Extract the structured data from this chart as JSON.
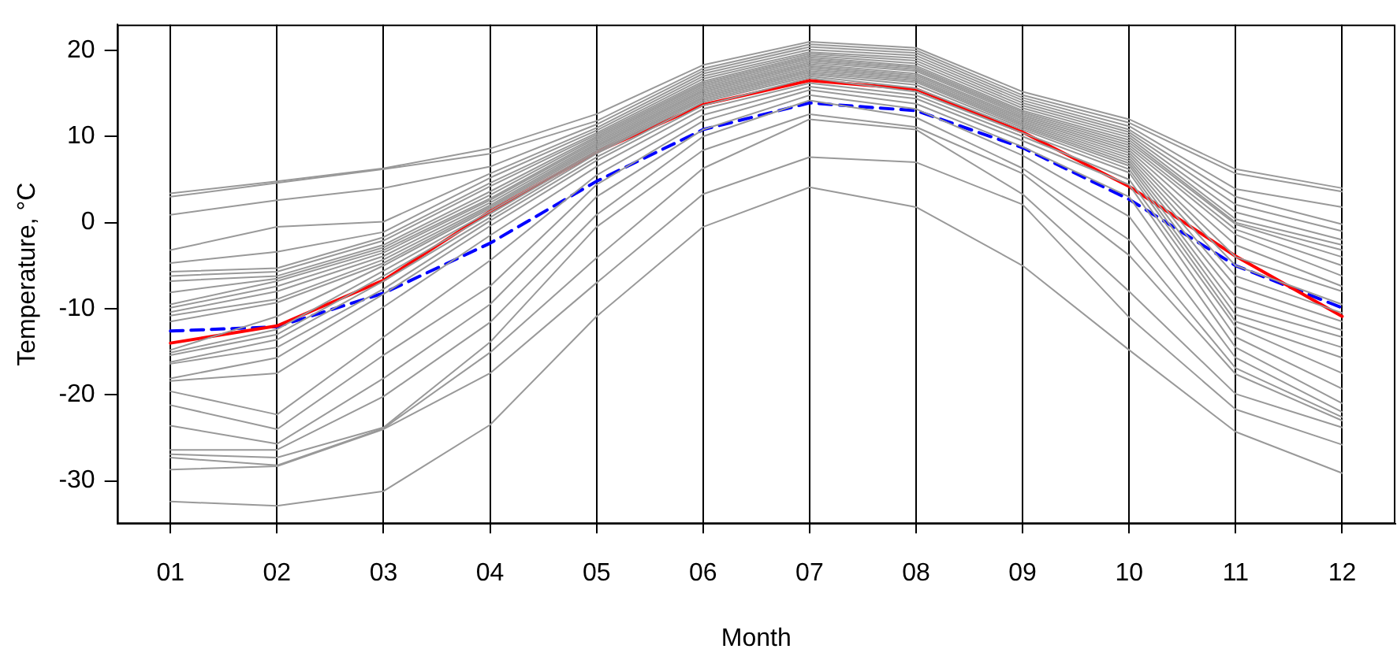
{
  "chart_data": {
    "type": "line",
    "xlabel": "Month",
    "ylabel": "Temperature, °C",
    "categories": [
      "01",
      "02",
      "03",
      "04",
      "05",
      "06",
      "07",
      "08",
      "09",
      "10",
      "11",
      "12"
    ],
    "ylim": [
      -35,
      23
    ],
    "yticks": [
      -30,
      -20,
      -10,
      0,
      10,
      20
    ],
    "grid": "x",
    "legend": false,
    "marker": "none",
    "series": [
      {
        "color": "#999999",
        "values": [
          3.4,
          4.8,
          6.3,
          8.6,
          12.6,
          18.3,
          21.0,
          20.3,
          15.2,
          12.0,
          6.2,
          4.0
        ]
      },
      {
        "color": "#999999",
        "values": [
          3.0,
          4.6,
          6.2,
          8.0,
          11.8,
          17.9,
          20.7,
          20.0,
          14.8,
          11.6,
          5.7,
          3.6
        ]
      },
      {
        "color": "#999999",
        "values": [
          0.9,
          2.6,
          4.0,
          6.5,
          11.4,
          17.6,
          20.4,
          19.7,
          14.5,
          11.2,
          3.9,
          1.8
        ]
      },
      {
        "color": "#999999",
        "values": [
          -3.2,
          -0.5,
          0.1,
          5.7,
          11.0,
          17.3,
          20.1,
          19.4,
          14.2,
          10.8,
          3.0,
          -0.2
        ]
      },
      {
        "color": "#999999",
        "values": [
          -4.7,
          -3.4,
          -1.1,
          5.2,
          10.7,
          17.0,
          19.8,
          19.1,
          13.9,
          10.5,
          2.1,
          -1.0
        ]
      },
      {
        "color": "#999999",
        "values": [
          -5.7,
          -5.3,
          -1.7,
          4.6,
          10.4,
          16.7,
          19.6,
          18.8,
          13.6,
          10.2,
          1.2,
          -2.0
        ]
      },
      {
        "color": "#999999",
        "values": [
          -6.2,
          -5.7,
          -2.1,
          4.2,
          10.2,
          16.4,
          19.4,
          18.5,
          13.3,
          9.9,
          0.4,
          -2.6
        ]
      },
      {
        "color": "#999999",
        "values": [
          -6.8,
          -6.2,
          -2.6,
          3.6,
          10.0,
          16.2,
          19.2,
          18.2,
          13.0,
          9.6,
          0.0,
          -3.2
        ]
      },
      {
        "color": "#999999",
        "values": [
          -8.1,
          -6.5,
          -2.9,
          3.2,
          9.8,
          16.0,
          19.0,
          18.0,
          12.8,
          9.3,
          -0.2,
          -4.0
        ]
      },
      {
        "color": "#999999",
        "values": [
          -9.5,
          -6.8,
          -3.2,
          2.8,
          9.6,
          15.8,
          18.8,
          17.8,
          12.6,
          9.0,
          -0.8,
          -5.0
        ]
      },
      {
        "color": "#999999",
        "values": [
          -9.9,
          -7.4,
          -3.5,
          2.6,
          9.4,
          15.6,
          18.6,
          17.6,
          12.4,
          8.7,
          -1.4,
          -6.2
        ]
      },
      {
        "color": "#999999",
        "values": [
          -10.4,
          -8.0,
          -3.9,
          2.3,
          9.2,
          15.4,
          18.4,
          17.3,
          12.2,
          8.4,
          -2.6,
          -7.4
        ]
      },
      {
        "color": "#999999",
        "values": [
          -10.8,
          -8.9,
          -4.3,
          2.0,
          9.0,
          15.2,
          18.2,
          17.1,
          12.0,
          8.1,
          -4.0,
          -8.0
        ]
      },
      {
        "color": "#999999",
        "values": [
          -11.5,
          -9.3,
          -4.7,
          1.8,
          8.8,
          15.0,
          18.0,
          16.9,
          11.8,
          7.8,
          -5.0,
          -9.5
        ]
      },
      {
        "color": "#999999",
        "values": [
          -14.8,
          -10.9,
          -5.0,
          1.6,
          8.6,
          14.8,
          17.8,
          16.7,
          11.6,
          7.5,
          -6.2,
          -10.5
        ]
      },
      {
        "color": "#999999",
        "values": [
          -15.1,
          -12.4,
          -5.6,
          1.3,
          8.4,
          14.6,
          17.6,
          16.5,
          11.4,
          7.2,
          -7.4,
          -11.5
        ]
      },
      {
        "color": "#999999",
        "values": [
          -15.4,
          -13.0,
          -6.2,
          1.0,
          8.2,
          14.4,
          17.4,
          16.3,
          11.2,
          6.9,
          -8.6,
          -12.5
        ]
      },
      {
        "color": "#999999",
        "values": [
          -16.2,
          -13.6,
          -6.8,
          0.6,
          8.0,
          14.2,
          17.2,
          16.0,
          11.0,
          6.6,
          -9.8,
          -13.3
        ]
      },
      {
        "color": "#999999",
        "values": [
          -16.4,
          -14.5,
          -7.7,
          0.2,
          7.6,
          14.0,
          17.0,
          15.6,
          10.8,
          6.2,
          -10.7,
          -14.5
        ]
      },
      {
        "color": "#999999",
        "values": [
          -18.1,
          -15.7,
          -8.3,
          -0.4,
          7.2,
          13.6,
          16.8,
          15.2,
          10.4,
          5.8,
          -11.5,
          -15.7
        ]
      },
      {
        "color": "#999999",
        "values": [
          -18.4,
          -17.5,
          -9.8,
          -1.5,
          6.5,
          13.2,
          16.2,
          14.8,
          10.0,
          5.0,
          -12.1,
          -17.5
        ]
      },
      {
        "color": "#999999",
        "values": [
          -19.6,
          -22.3,
          -13.3,
          -4.4,
          5.5,
          12.5,
          15.8,
          14.4,
          9.5,
          4.4,
          -13.3,
          -19.3
        ]
      },
      {
        "color": "#999999",
        "values": [
          -21.2,
          -24.0,
          -15.4,
          -7.4,
          4.4,
          11.8,
          15.4,
          13.8,
          8.8,
          3.0,
          -14.5,
          -21.0
        ]
      },
      {
        "color": "#999999",
        "values": [
          -23.6,
          -25.7,
          -18.1,
          -9.5,
          3.0,
          10.8,
          14.8,
          13.2,
          7.8,
          0.7,
          -15.7,
          -22.0
        ]
      },
      {
        "color": "#999999",
        "values": [
          -26.4,
          -26.4,
          -20.2,
          -11.6,
          0.9,
          10.0,
          14.2,
          12.2,
          6.3,
          -2.0,
          -16.9,
          -22.6
        ]
      },
      {
        "color": "#999999",
        "values": [
          -26.9,
          -27.3,
          -23.8,
          -13.9,
          -0.5,
          8.4,
          12.6,
          11.1,
          5.7,
          -3.8,
          -17.6,
          -23.0
        ]
      },
      {
        "color": "#999999",
        "values": [
          -27.3,
          -28.2,
          -23.9,
          -15.1,
          -4.1,
          6.3,
          12.0,
          10.8,
          3.3,
          -8.0,
          -19.9,
          -23.8
        ]
      },
      {
        "color": "#999999",
        "values": [
          -28.7,
          -28.3,
          -24.0,
          -17.5,
          -7.0,
          3.3,
          7.6,
          7.0,
          2.1,
          -11.0,
          -21.7,
          -25.8
        ]
      },
      {
        "color": "#999999",
        "values": [
          -32.4,
          -32.9,
          -31.2,
          -23.5,
          -10.9,
          -0.5,
          4.1,
          1.8,
          -5.0,
          -14.8,
          -24.3,
          -29.1
        ]
      },
      {
        "color": "#ff0000",
        "values": [
          -14.0,
          -12.0,
          -6.7,
          1.3,
          8.2,
          13.7,
          16.5,
          15.5,
          10.5,
          4.2,
          -3.9,
          -10.9
        ]
      },
      {
        "color": "#0000ff",
        "line_style": "dashed",
        "values": [
          -12.6,
          -12.1,
          -8.2,
          -2.4,
          4.8,
          10.8,
          13.9,
          13.0,
          8.7,
          2.7,
          -5.0,
          -9.9
        ]
      }
    ]
  }
}
